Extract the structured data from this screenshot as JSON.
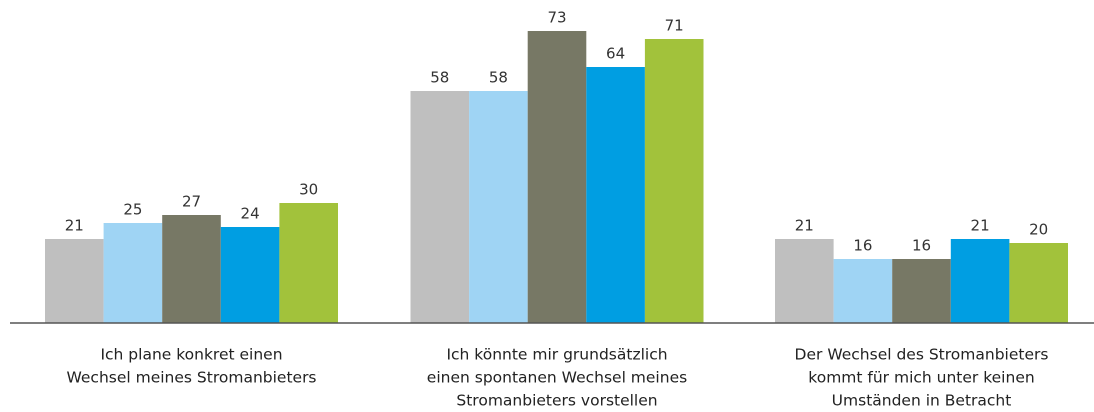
{
  "chart_data": {
    "type": "bar",
    "categories": [
      [
        "Ich plane konkret einen",
        "Wechsel meines Stromanbieters"
      ],
      [
        "Ich könnte mir grundsätzlich",
        "einen spontanen Wechsel meines",
        "Stromanbieters vorstellen"
      ],
      [
        "Der Wechsel des Stromanbieters",
        "kommt für mich unter keinen",
        "Umständen in Betracht"
      ]
    ],
    "series": [
      {
        "color": "#bfbfbf",
        "values": [
          21,
          58,
          21
        ]
      },
      {
        "color": "#9fd4f4",
        "values": [
          25,
          58,
          16
        ]
      },
      {
        "color": "#777865",
        "values": [
          27,
          73,
          16
        ]
      },
      {
        "color": "#009ee2",
        "values": [
          24,
          64,
          21
        ]
      },
      {
        "color": "#a2c23b",
        "values": [
          30,
          71,
          20
        ]
      }
    ],
    "ylim": [
      0,
      80
    ]
  }
}
